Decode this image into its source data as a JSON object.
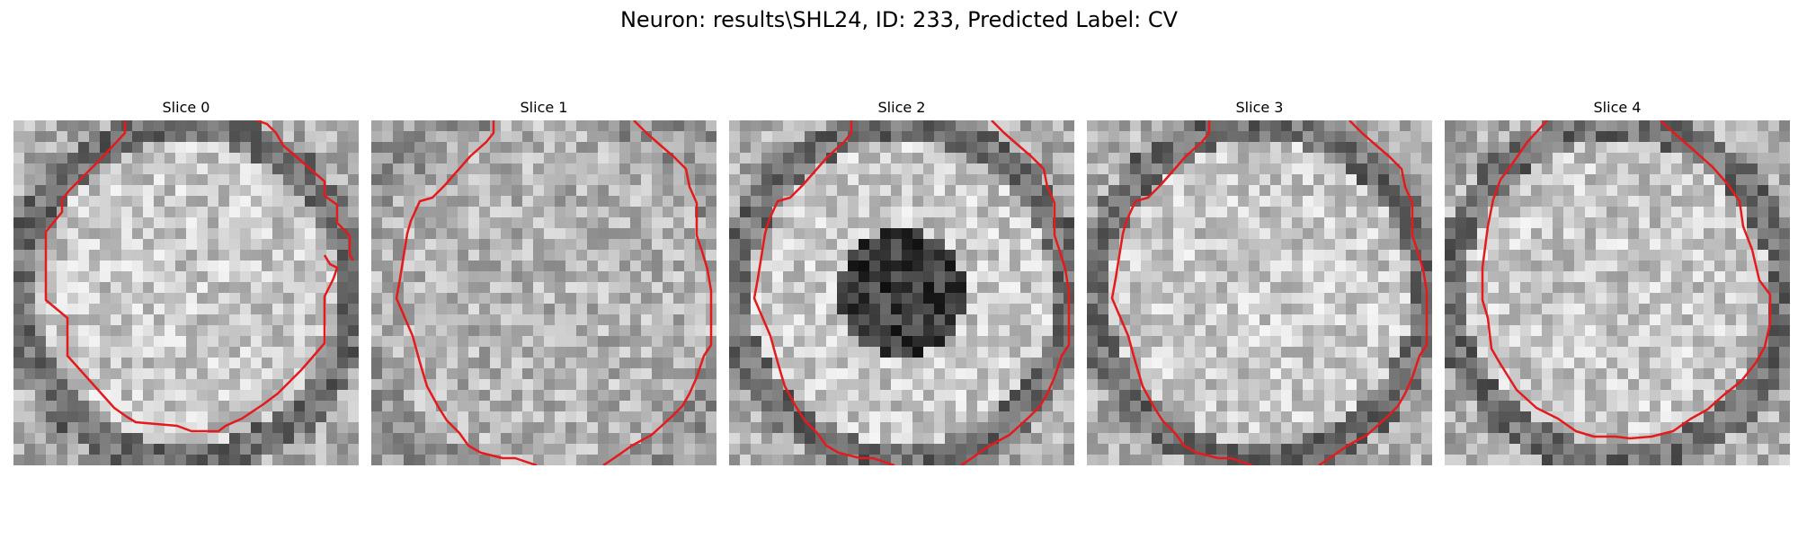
{
  "figure": {
    "suptitle": "Neuron: results\\SHL24, ID: 233, Predicted Label: CV",
    "contour_color": "#e41a1c",
    "panels": [
      {
        "title": "Slice 0",
        "pattern": "ring",
        "contour": "left-bottom"
      },
      {
        "title": "Slice 1",
        "pattern": "noisy",
        "contour": "left-right"
      },
      {
        "title": "Slice 2",
        "pattern": "dark-center",
        "contour": "left-right"
      },
      {
        "title": "Slice 3",
        "pattern": "ring",
        "contour": "left-right"
      },
      {
        "title": "Slice 4",
        "pattern": "ring",
        "contour": "closed"
      }
    ]
  }
}
